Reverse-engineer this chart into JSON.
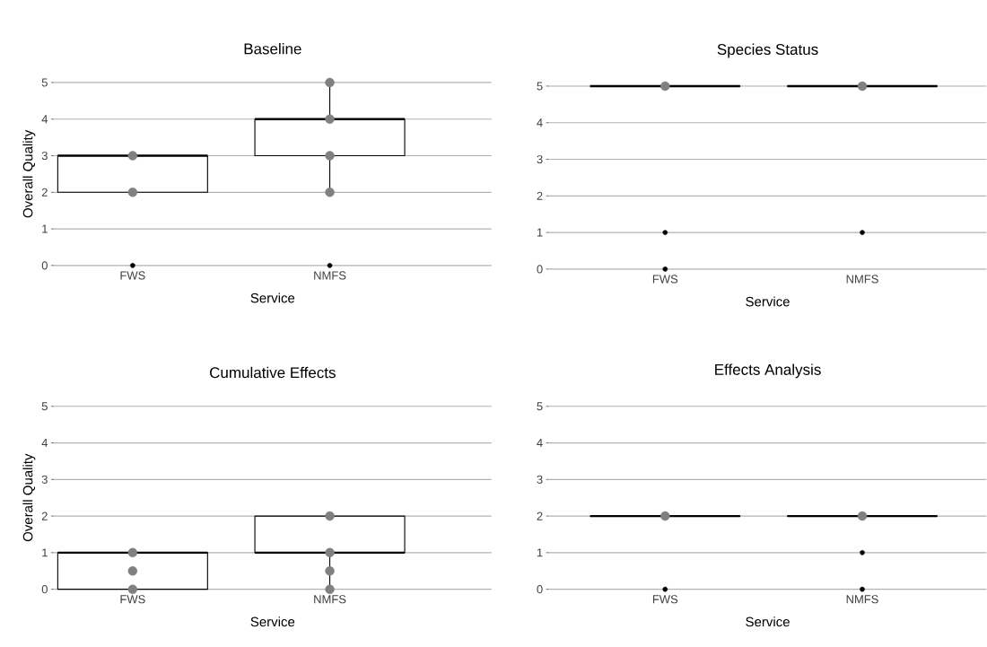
{
  "chart_data": [
    {
      "type": "box",
      "title": "Baseline",
      "xlabel": "Service",
      "ylabel": "Overall Quality",
      "categories": [
        "FWS",
        "NMFS"
      ],
      "color": "#000000",
      "boxes": [
        {
          "low": 2,
          "q1": 2,
          "median": 3,
          "q3": 3,
          "high": 3,
          "outliers": [
            0
          ]
        },
        {
          "low": 2,
          "q1": 3,
          "median": 4,
          "q3": 4,
          "high": 5,
          "outliers": [
            0
          ]
        }
      ],
      "series": [
        {
          "type": "scatter",
          "color": "#808080",
          "x": [
            "FWS",
            "FWS",
            "NMFS",
            "NMFS",
            "NMFS",
            "NMFS"
          ],
          "values": [
            3,
            2,
            5,
            4,
            3,
            2
          ]
        }
      ],
      "ylim": [
        0,
        5
      ],
      "yticks": [
        0,
        1,
        2,
        3,
        4,
        5
      ],
      "grid": "y"
    },
    {
      "type": "box",
      "title": "Species Status",
      "xlabel": "Service",
      "categories": [
        "FWS",
        "NMFS"
      ],
      "color": "#000000",
      "boxes": [
        {
          "low": 5,
          "q1": 5,
          "median": 5,
          "q3": 5,
          "high": 5,
          "outliers": [
            1,
            0
          ]
        },
        {
          "low": 5,
          "q1": 5,
          "median": 5,
          "q3": 5,
          "high": 5,
          "outliers": [
            1
          ]
        }
      ],
      "series": [
        {
          "type": "scatter",
          "color": "#808080",
          "x": [
            "FWS",
            "NMFS"
          ],
          "values": [
            5,
            5
          ]
        }
      ],
      "ylim": [
        0,
        5
      ],
      "yticks": [
        0,
        1,
        2,
        3,
        4,
        5
      ],
      "grid": "y"
    },
    {
      "type": "box",
      "title": "Cumulative Effects",
      "xlabel": "Service",
      "ylabel": "Overall Quality",
      "categories": [
        "FWS",
        "NMFS"
      ],
      "color": "#000000",
      "boxes": [
        {
          "low": 0,
          "q1": 0,
          "median": 1,
          "q3": 1,
          "high": 1
        },
        {
          "low": 0,
          "q1": 1,
          "median": 1,
          "q3": 2,
          "high": 2
        }
      ],
      "series": [
        {
          "type": "scatter",
          "color": "#808080",
          "x": [
            "FWS",
            "FWS",
            "FWS",
            "NMFS",
            "NMFS",
            "NMFS",
            "NMFS"
          ],
          "values": [
            1,
            0.5,
            0,
            2,
            1,
            0.5,
            0
          ]
        }
      ],
      "ylim": [
        0,
        5
      ],
      "yticks": [
        0,
        1,
        2,
        3,
        4,
        5
      ],
      "grid": "y"
    },
    {
      "type": "box",
      "title": "Effects Analysis",
      "xlabel": "Service",
      "categories": [
        "FWS",
        "NMFS"
      ],
      "color": "#000000",
      "boxes": [
        {
          "low": 2,
          "q1": 2,
          "median": 2,
          "q3": 2,
          "high": 2,
          "outliers": [
            0
          ]
        },
        {
          "low": 2,
          "q1": 2,
          "median": 2,
          "q3": 2,
          "high": 2,
          "outliers": [
            1,
            0
          ]
        }
      ],
      "series": [
        {
          "type": "scatter",
          "color": "#808080",
          "x": [
            "FWS",
            "NMFS"
          ],
          "values": [
            2,
            2
          ]
        }
      ],
      "ylim": [
        0,
        5
      ],
      "yticks": [
        0,
        1,
        2,
        3,
        4,
        5
      ],
      "grid": "y"
    }
  ]
}
